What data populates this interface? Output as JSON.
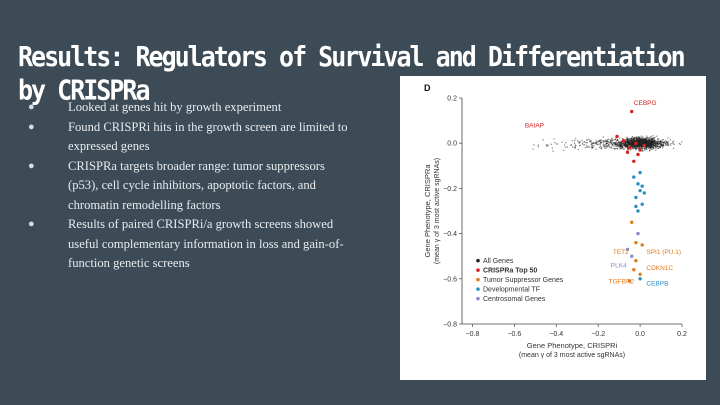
{
  "slide": {
    "title": "Results: Regulators of Survival and Differentiation by CRISPRa",
    "bullets": [
      "Looked at genes hit by growth experiment",
      "Found CRISPRi hits in the growth screen are limited to expressed genes",
      "CRISPRa targets broader range: tumor suppressors (p53), cell cycle inhibitors, apoptotic factors, and chromatin remodelling factors",
      "Results of paired CRISPRi/a growth screens showed useful complementary information in loss and gain-of-function genetic screens"
    ],
    "bullet_glyph": "●"
  },
  "figure": {
    "panel_label": "D",
    "chart_data": {
      "type": "scatter",
      "xlabel": "Gene Phenotype, CRISPRi",
      "xlabel_sub": "(mean γ of 3 most active sgRNAs)",
      "ylabel": "Gene Phenotype, CRISPRa",
      "ylabel_sub": "(mean γ of 3 most active sgRNAs)",
      "xlim": [
        -0.85,
        0.2
      ],
      "ylim": [
        -0.8,
        0.2
      ],
      "x_ticks": [
        -0.8,
        -0.6,
        -0.4,
        -0.2,
        0.0,
        0.2
      ],
      "y_ticks": [
        0.2,
        0.0,
        -0.2,
        -0.4,
        -0.6,
        -0.8
      ],
      "x_tick_labels": [
        "−0.8",
        "−0.6",
        "−0.4",
        "−0.2",
        "0.0",
        "0.2"
      ],
      "y_tick_labels": [
        "0.2",
        "0.0",
        "−0.2",
        "−0.4",
        "−0.6",
        "−0.8"
      ],
      "legend": {
        "placement": "bottom-left",
        "entries": [
          {
            "label": "All Genes",
            "color": "#222222"
          },
          {
            "label": "CRISPRa Top 50",
            "color": "#d42020"
          },
          {
            "label": "Tumor Suppressor Genes",
            "color": "#e07a1a"
          },
          {
            "label": "Developmental TF",
            "color": "#2a8fc4"
          },
          {
            "label": "Centrosomal Genes",
            "color": "#8a8ad0"
          }
        ]
      },
      "annotations": [
        {
          "text": "CEBPG",
          "x": -0.03,
          "y": 0.17,
          "color": "#d42020"
        },
        {
          "text": "BAIAP",
          "x": -0.55,
          "y": 0.07,
          "color": "#d42020"
        },
        {
          "text": "TET2",
          "x": -0.13,
          "y": -0.49,
          "color": "#e07a1a"
        },
        {
          "text": "SPI1 (PU.1)",
          "x": 0.03,
          "y": -0.49,
          "color": "#e07a1a"
        },
        {
          "text": "PLK4",
          "x": -0.14,
          "y": -0.55,
          "color": "#8a8ad0"
        },
        {
          "text": "CDKN1C",
          "x": 0.03,
          "y": -0.56,
          "color": "#e07a1a"
        },
        {
          "text": "TGFBR2",
          "x": -0.15,
          "y": -0.62,
          "color": "#e07a1a"
        },
        {
          "text": "CEBPB",
          "x": 0.03,
          "y": -0.63,
          "color": "#2a8fc4"
        }
      ],
      "series": [
        {
          "name": "CRISPRa Top 50",
          "color": "#d42020",
          "points": [
            [
              -0.02,
              0.0
            ],
            [
              -0.05,
              -0.02
            ],
            [
              0.0,
              -0.03
            ],
            [
              -0.08,
              0.01
            ],
            [
              -0.01,
              -0.05
            ],
            [
              -0.03,
              -0.08
            ],
            [
              -0.06,
              -0.04
            ],
            [
              0.02,
              -0.01
            ],
            [
              -0.04,
              0.14
            ],
            [
              -0.11,
              0.03
            ]
          ]
        },
        {
          "name": "Tumor Suppressor Genes",
          "color": "#e07a1a",
          "points": [
            [
              -0.02,
              -0.44
            ],
            [
              -0.02,
              -0.52
            ],
            [
              -0.03,
              -0.56
            ],
            [
              0.0,
              -0.58
            ],
            [
              -0.05,
              -0.61
            ],
            [
              0.01,
              -0.45
            ],
            [
              -0.04,
              -0.35
            ]
          ]
        },
        {
          "name": "Developmental TF",
          "color": "#2a8fc4",
          "points": [
            [
              -0.01,
              -0.18
            ],
            [
              0.0,
              -0.21
            ],
            [
              -0.02,
              -0.24
            ],
            [
              0.01,
              -0.27
            ],
            [
              -0.01,
              -0.3
            ],
            [
              0.0,
              -0.13
            ],
            [
              0.02,
              -0.22
            ],
            [
              0.0,
              -0.6
            ],
            [
              -0.03,
              -0.15
            ],
            [
              0.01,
              -0.19
            ],
            [
              -0.02,
              -0.28
            ]
          ]
        },
        {
          "name": "Centrosomal Genes",
          "color": "#8a8ad0",
          "points": [
            [
              -0.04,
              -0.5
            ],
            [
              -0.06,
              -0.47
            ],
            [
              -0.01,
              -0.4
            ]
          ]
        }
      ]
    }
  }
}
